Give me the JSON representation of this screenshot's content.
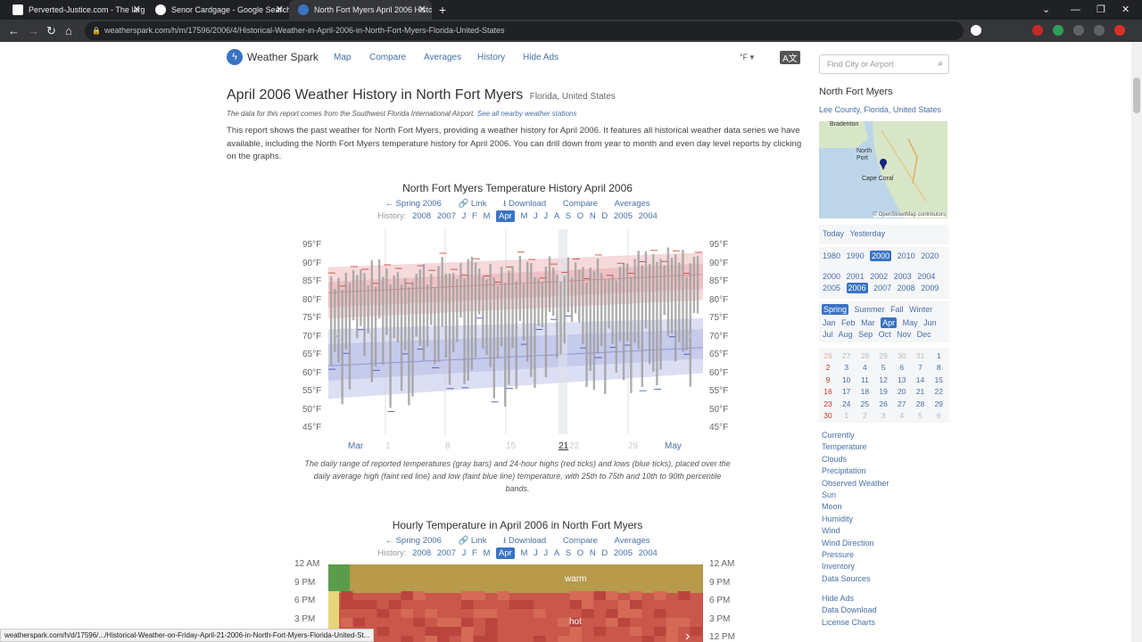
{
  "browser": {
    "tabs": [
      {
        "title": "Perverted-Justice.com - The larg"
      },
      {
        "title": "Senor Cardgage - Google Search"
      },
      {
        "title": "North Fort Myers April 2006 Histo"
      }
    ],
    "url": "weatherspark.com/h/m/17596/2006/4/Historical-Weather-in-April-2006-in-North-Fort-Myers-Florida-United-States",
    "status_url": "weatherspark.com/h/d/17596/.../Historical-Weather-on-Friday-April-21-2006-in-North-Fort-Myers-Florida-United-St..."
  },
  "site": {
    "brand": "Weather Spark",
    "menu": [
      "Map",
      "Compare",
      "Averages",
      "History",
      "Hide Ads"
    ],
    "unit": "°F ▾",
    "lang": "A文",
    "search_placeholder": "Find City or Airport"
  },
  "header": {
    "title": "April 2006 Weather History in North Fort Myers",
    "location": "Florida, United States",
    "source_text": "The data for this report comes from the Southwest Florida International Airport.",
    "source_link": "See all nearby weather stations",
    "intro": "This report shows the past weather for North Fort Myers, providing a weather history for April 2006. It features all historical weather data series we have available, including the North Fort Myers temperature history for April 2006. You can drill down from year to month and even day level reports by clicking on the graphs."
  },
  "chart1": {
    "title": "North Fort Myers Temperature History April 2006",
    "links": [
      "Spring 2006",
      "Link",
      "Download",
      "Compare",
      "Averages"
    ],
    "history_label": "History:",
    "history": [
      "2008",
      "2007",
      "J",
      "F",
      "M",
      "Apr",
      "M",
      "J",
      "J",
      "A",
      "S",
      "O",
      "N",
      "D",
      "2005",
      "2004"
    ],
    "caption": "The daily range of reported temperatures (gray bars) and 24-hour highs (red ticks) and lows (blue ticks), placed over the daily average high (faint red line) and low (faint blue line) temperature, with 25th to 75th and 10th to 90th percentile bands."
  },
  "chart1_data": {
    "type": "bar",
    "ylabel_ticks": [
      "95°F",
      "90°F",
      "85°F",
      "80°F",
      "75°F",
      "70°F",
      "65°F",
      "60°F",
      "55°F",
      "50°F",
      "45°F"
    ],
    "xticks": [
      "Mar",
      "1",
      "8",
      "15",
      "21",
      "22",
      "29",
      "May"
    ]
  },
  "chart2": {
    "title": "Hourly Temperature in April 2006 in North Fort Myers",
    "links": [
      "Spring 2006",
      "Link",
      "Download",
      "Compare",
      "Averages"
    ],
    "history_label": "History:",
    "history": [
      "2008",
      "2007",
      "J",
      "F",
      "M",
      "Apr",
      "M",
      "J",
      "J",
      "A",
      "S",
      "O",
      "N",
      "D",
      "2005",
      "2004"
    ],
    "yticks": [
      "12 AM",
      "9 PM",
      "6 PM",
      "3 PM",
      "12 PM"
    ],
    "labels": [
      "warm",
      "hot"
    ]
  },
  "chart_data": {
    "type": "heatmap",
    "title": "North Fort Myers Temperature History April 2006",
    "y_range_F": [
      45,
      95
    ],
    "series": [
      {
        "name": "daily average high",
        "start": 82,
        "end": 87
      },
      {
        "name": "daily average low",
        "start": 62,
        "end": 67
      }
    ]
  },
  "sidebar": {
    "title": "North Fort Myers",
    "subtitle": "Lee County, Florida, United States",
    "map_labels": [
      "Bradenton",
      "North Port",
      "Cape Coral"
    ],
    "map_credit": "© OpenStreetMap contributors",
    "quick": [
      "Today",
      "Yesterday"
    ],
    "decades": [
      "1980",
      "1990",
      "2000",
      "2010",
      "2020"
    ],
    "years1": [
      "2000",
      "2001",
      "2002",
      "2003",
      "2004"
    ],
    "years2": [
      "2005",
      "2006",
      "2007",
      "2008",
      "2009"
    ],
    "seasons": [
      "Spring",
      "Summer",
      "Fall",
      "Winter"
    ],
    "months1": [
      "Jan",
      "Feb",
      "Mar",
      "Apr",
      "May",
      "Jun"
    ],
    "months2": [
      "Jul",
      "Aug",
      "Sep",
      "Oct",
      "Nov",
      "Dec"
    ],
    "cal_rows": [
      [
        "26",
        "27",
        "28",
        "29",
        "30",
        "31",
        "1"
      ],
      [
        "2",
        "3",
        "4",
        "5",
        "6",
        "7",
        "8"
      ],
      [
        "9",
        "10",
        "11",
        "12",
        "13",
        "14",
        "15"
      ],
      [
        "16",
        "17",
        "18",
        "19",
        "20",
        "21",
        "22"
      ],
      [
        "23",
        "24",
        "25",
        "26",
        "27",
        "28",
        "29"
      ],
      [
        "30",
        "1",
        "2",
        "3",
        "4",
        "5",
        "6"
      ]
    ],
    "links1": [
      "Currently",
      "Temperature",
      "Clouds",
      "Precipitation",
      "Observed Weather",
      "Sun",
      "Moon",
      "Humidity",
      "Wind",
      "Wind Direction",
      "Pressure",
      "Inventory",
      "Data Sources"
    ],
    "links2": [
      "Hide Ads",
      "Data Download",
      "License Charts"
    ]
  }
}
